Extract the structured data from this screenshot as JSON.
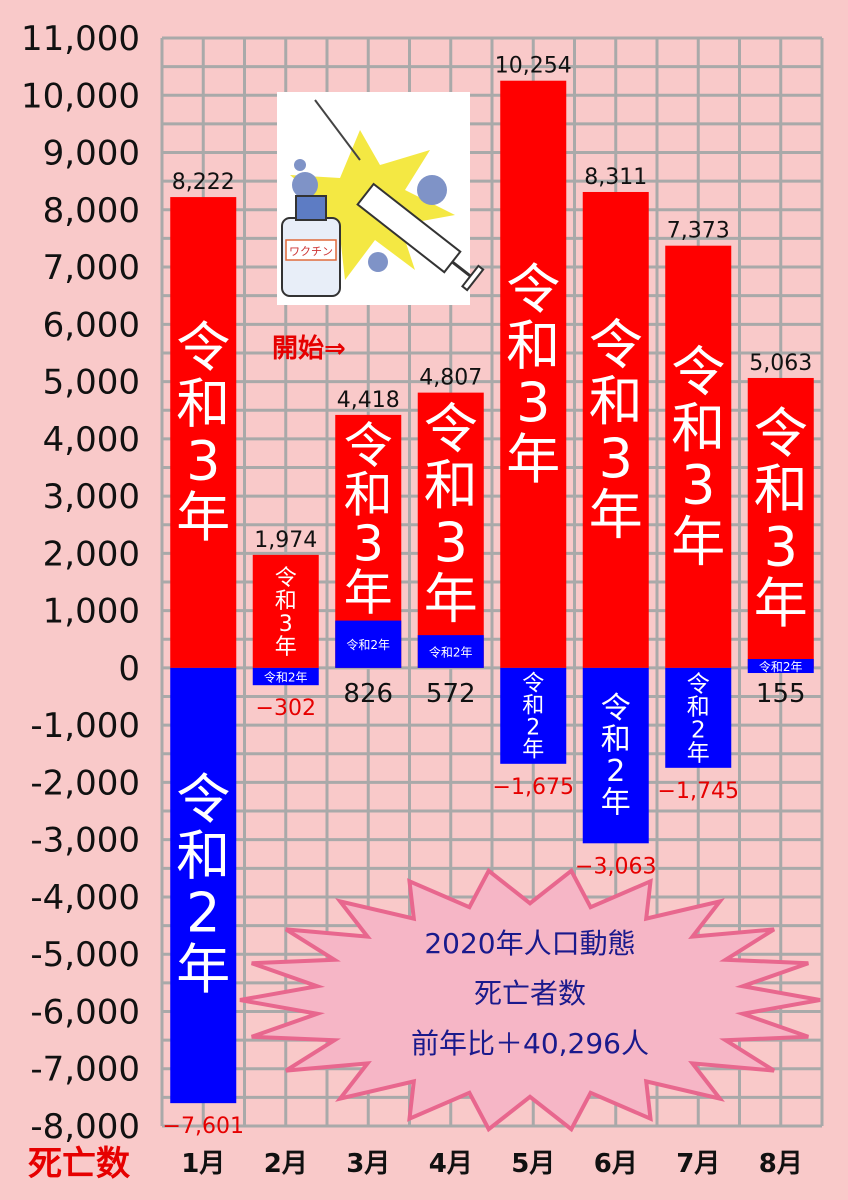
{
  "chart_data": {
    "type": "bar",
    "ylabel": "死亡数",
    "categories": [
      "1月",
      "2月",
      "3月",
      "4月",
      "5月",
      "6月",
      "7月",
      "8月"
    ],
    "series": [
      {
        "name": "令和3年",
        "color": "#ff0000",
        "values": [
          8222,
          1974,
          4418,
          4807,
          10254,
          8311,
          7373,
          5063
        ]
      },
      {
        "name": "令和2年",
        "color": "#0000ff",
        "values": [
          -7601,
          -302,
          826,
          572,
          -1675,
          -3063,
          -1745,
          155
        ]
      }
    ],
    "bar_texts": [
      "令和3年",
      "令和3年",
      "令和3年",
      "令和3年",
      "令和3年",
      "令和3年",
      "令和3年",
      "令和3年"
    ],
    "neg_bar_texts": [
      "令和2年",
      "令和2年",
      "令和2年",
      "令和2年",
      "令和2年",
      "令和2年",
      "令和2年",
      "令和2年"
    ],
    "top_labels": [
      "8,222",
      "1,974",
      "4,418",
      "4,807",
      "10,254",
      "8,311",
      "7,373",
      "5,063"
    ],
    "diff_labels": [
      "−7,601",
      "−302",
      "826",
      "572",
      "−1,675",
      "−3,063",
      "−1,745",
      "155"
    ],
    "ylim": [
      -8000,
      11000
    ],
    "yticks": [
      11000,
      10000,
      9000,
      8000,
      7000,
      6000,
      5000,
      4000,
      3000,
      2000,
      1000,
      0,
      -1000,
      -2000,
      -3000,
      -4000,
      -5000,
      -6000,
      -7000,
      -8000
    ],
    "ytick_labels": [
      "11,000",
      "10,000",
      "9,000",
      "8,000",
      "7,000",
      "6,000",
      "5,000",
      "4,000",
      "3,000",
      "2,000",
      "1,000",
      "0",
      "-1,000",
      "-2,000",
      "-3,000",
      "-4,000",
      "-5,000",
      "-6,000",
      "-7,000",
      "-8,000"
    ],
    "grid": true
  },
  "annotation": {
    "start_label": "開始⇒",
    "vaccine_label": "ワクチン"
  },
  "summary": {
    "line1": "2020年人口動態",
    "line2": "死亡者数",
    "line3": "前年比＋40,296人"
  },
  "colors": {
    "background": "#f9c9c9",
    "grid": "#a9a9a9",
    "red": "#ff0000",
    "blue": "#0000ff"
  }
}
